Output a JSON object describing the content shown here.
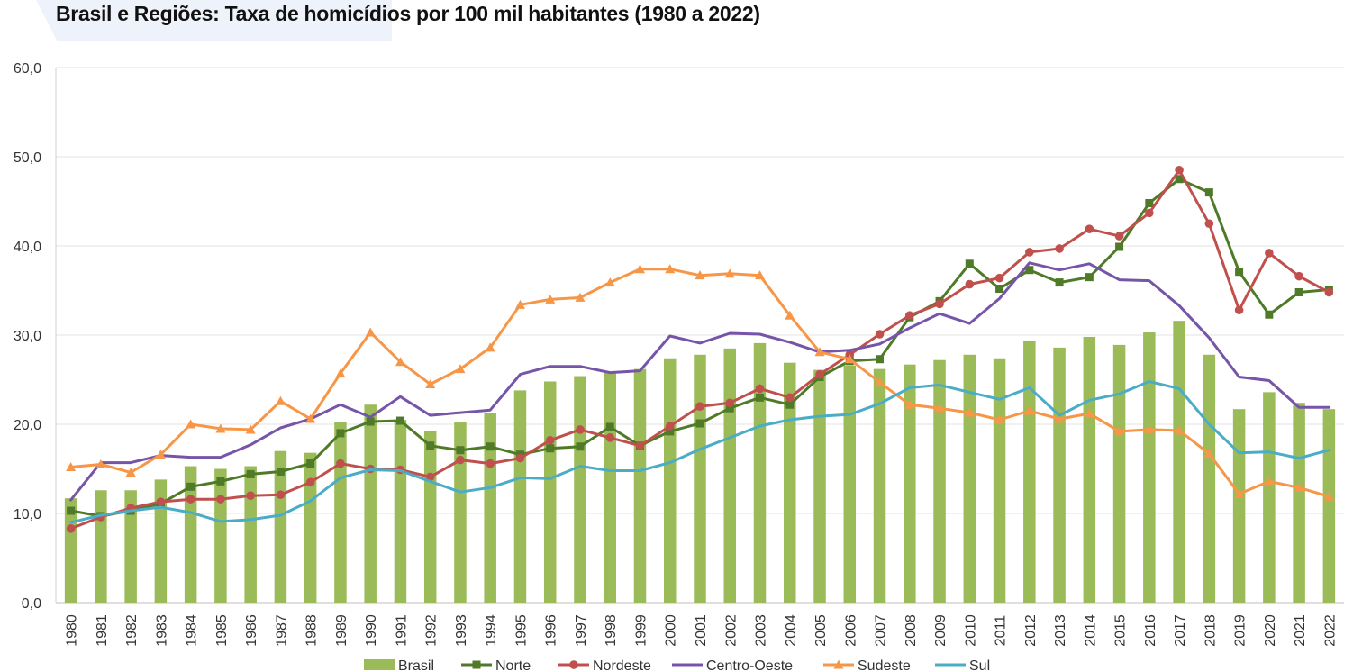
{
  "chart_data": {
    "type": "bar",
    "title": "Brasil e Regiões: Taxa de homicídios por 100 mil habitantes (1980 a 2022)",
    "xlabel": "",
    "ylabel": "",
    "ylim": [
      0,
      60
    ],
    "y_ticks": [
      "0,0",
      "10,0",
      "20,0",
      "30,0",
      "40,0",
      "50,0",
      "60,0"
    ],
    "grid": true,
    "legend_position": "bottom",
    "categories": [
      "1980",
      "1981",
      "1982",
      "1983",
      "1984",
      "1985",
      "1986",
      "1987",
      "1988",
      "1989",
      "1990",
      "1991",
      "1992",
      "1993",
      "1994",
      "1995",
      "1996",
      "1997",
      "1998",
      "1999",
      "2000",
      "2001",
      "2002",
      "2003",
      "2004",
      "2005",
      "2006",
      "2007",
      "2008",
      "2009",
      "2010",
      "2011",
      "2012",
      "2013",
      "2014",
      "2015",
      "2016",
      "2017",
      "2018",
      "2019",
      "2020",
      "2021",
      "2022"
    ],
    "series": [
      {
        "name": "Brasil",
        "kind": "bar",
        "color": "#9bbb59",
        "values": [
          11.7,
          12.6,
          12.6,
          13.8,
          15.3,
          15.0,
          15.3,
          17.0,
          16.8,
          20.3,
          22.2,
          20.5,
          19.2,
          20.2,
          21.3,
          23.8,
          24.8,
          25.4,
          25.9,
          26.2,
          27.4,
          27.8,
          28.5,
          29.1,
          26.9,
          26.1,
          26.6,
          26.2,
          26.7,
          27.2,
          27.8,
          27.4,
          29.4,
          28.6,
          29.8,
          28.9,
          30.3,
          31.6,
          27.8,
          21.7,
          23.6,
          22.4,
          21.7
        ]
      },
      {
        "name": "Norte",
        "kind": "line",
        "marker": "square",
        "color": "#4f7a28",
        "values": [
          10.3,
          9.7,
          10.3,
          11.1,
          13.0,
          13.6,
          14.4,
          14.7,
          15.6,
          19.0,
          20.3,
          20.4,
          17.6,
          17.1,
          17.5,
          16.6,
          17.3,
          17.5,
          19.7,
          17.6,
          19.2,
          20.1,
          21.8,
          23.0,
          22.2,
          25.3,
          27.1,
          27.3,
          32.0,
          33.8,
          38.0,
          35.2,
          37.3,
          35.9,
          36.5,
          39.9,
          44.8,
          47.5,
          46.0,
          37.1,
          32.3,
          34.8,
          35.1
        ]
      },
      {
        "name": "Nordeste",
        "kind": "line",
        "marker": "circle",
        "color": "#c0504d",
        "values": [
          8.3,
          9.6,
          10.6,
          11.3,
          11.6,
          11.6,
          12.0,
          12.1,
          13.5,
          15.6,
          15.0,
          14.9,
          14.1,
          16.0,
          15.6,
          16.2,
          18.2,
          19.4,
          18.5,
          17.6,
          19.8,
          22.0,
          22.4,
          24.0,
          23.0,
          25.6,
          27.8,
          30.1,
          32.2,
          33.5,
          35.7,
          36.4,
          39.3,
          39.7,
          41.9,
          41.1,
          43.7,
          48.5,
          42.5,
          32.8,
          39.2,
          36.6,
          34.8
        ]
      },
      {
        "name": "Centro-Oeste",
        "kind": "line",
        "marker": "none",
        "color": "#7655a8",
        "values": [
          11.5,
          15.7,
          15.7,
          16.5,
          16.3,
          16.3,
          17.7,
          19.6,
          20.6,
          22.2,
          20.8,
          23.1,
          21.0,
          21.3,
          21.6,
          25.6,
          26.5,
          26.5,
          25.8,
          26.0,
          29.9,
          29.1,
          30.2,
          30.1,
          29.2,
          28.1,
          28.3,
          29.0,
          30.8,
          32.4,
          31.3,
          34.1,
          38.1,
          37.3,
          38.0,
          36.2,
          36.1,
          33.3,
          29.7,
          25.3,
          24.9,
          21.9,
          21.9
        ]
      },
      {
        "name": "Sudeste",
        "kind": "line",
        "marker": "triangle",
        "color": "#f79646",
        "values": [
          15.2,
          15.5,
          14.6,
          16.6,
          20.0,
          19.5,
          19.4,
          22.6,
          20.6,
          25.7,
          30.3,
          27.0,
          24.5,
          26.2,
          28.6,
          33.4,
          34.0,
          34.2,
          35.9,
          37.4,
          37.4,
          36.7,
          36.9,
          36.7,
          32.2,
          28.1,
          27.3,
          24.7,
          22.2,
          21.8,
          21.3,
          20.5,
          21.5,
          20.6,
          21.2,
          19.2,
          19.4,
          19.3,
          16.7,
          12.2,
          13.6,
          12.9,
          11.9
        ]
      },
      {
        "name": "Sul",
        "kind": "line",
        "marker": "none",
        "color": "#4bacc6",
        "values": [
          9.0,
          9.8,
          10.3,
          10.7,
          10.1,
          9.1,
          9.3,
          9.8,
          11.4,
          14.0,
          14.9,
          14.8,
          13.6,
          12.4,
          12.9,
          14.0,
          13.9,
          15.3,
          14.8,
          14.8,
          15.7,
          17.2,
          18.5,
          19.8,
          20.5,
          20.9,
          21.1,
          22.3,
          24.1,
          24.4,
          23.6,
          22.8,
          24.1,
          21.0,
          22.7,
          23.4,
          24.8,
          24.0,
          20.0,
          16.8,
          16.9,
          16.2,
          17.1
        ]
      }
    ]
  }
}
